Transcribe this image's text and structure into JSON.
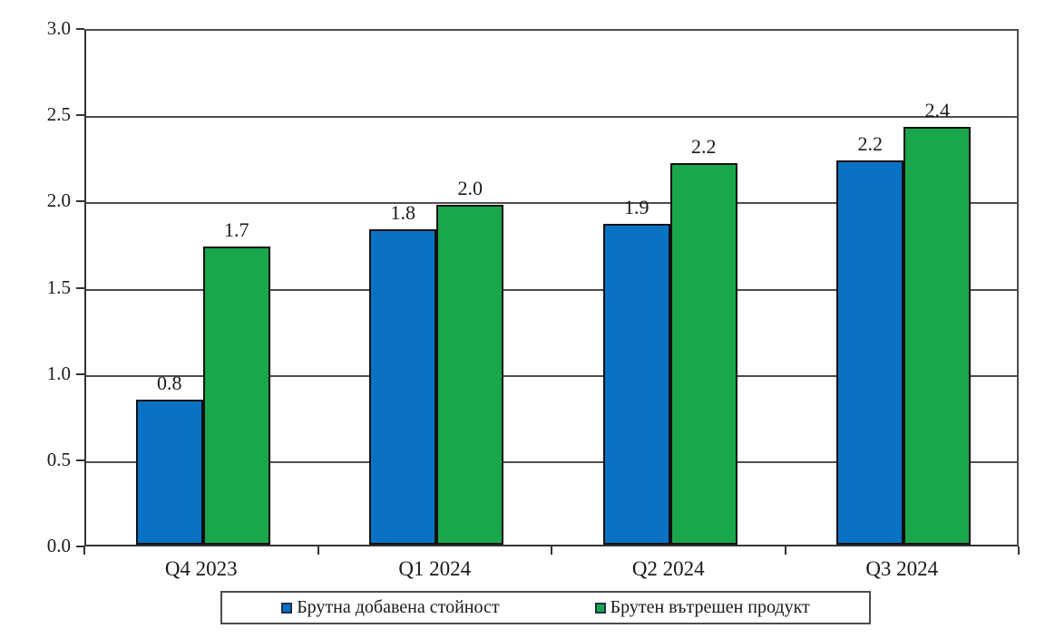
{
  "chart_data": {
    "type": "bar",
    "title": "",
    "xlabel": "",
    "ylabel": "",
    "categories": [
      "Q4 2023",
      "Q1 2024",
      "Q2 2024",
      "Q3 2024"
    ],
    "series": [
      {
        "name": "Брутна добавена стойност",
        "color": "#0a72c5",
        "values": [
          0.8,
          1.8,
          1.9,
          2.2
        ],
        "labels": [
          "0.8",
          "1.8",
          "1.9",
          "2.2"
        ],
        "bar_heights_estimate": [
          0.84,
          1.83,
          1.86,
          2.23
        ]
      },
      {
        "name": "Брутен вътрешен продукт",
        "color": "#1aa74b",
        "values": [
          1.7,
          2.0,
          2.2,
          2.4
        ],
        "labels": [
          "1.7",
          "2.0",
          "2.2",
          "2.4"
        ],
        "bar_heights_estimate": [
          1.73,
          1.97,
          2.21,
          2.42
        ]
      }
    ],
    "ylim": [
      0.0,
      3.0
    ],
    "ytick_step": 0.5,
    "ytick_labels": [
      "0.0",
      "0.5",
      "1.0",
      "1.5",
      "2.0",
      "2.5",
      "3.0"
    ],
    "grid": true,
    "legend_position": "bottom",
    "colors": {
      "bar_border": "#101010",
      "axis": "#333333",
      "gridline": "#4d4d4d",
      "background": "#ffffff",
      "text": "#1a1a1a"
    }
  }
}
